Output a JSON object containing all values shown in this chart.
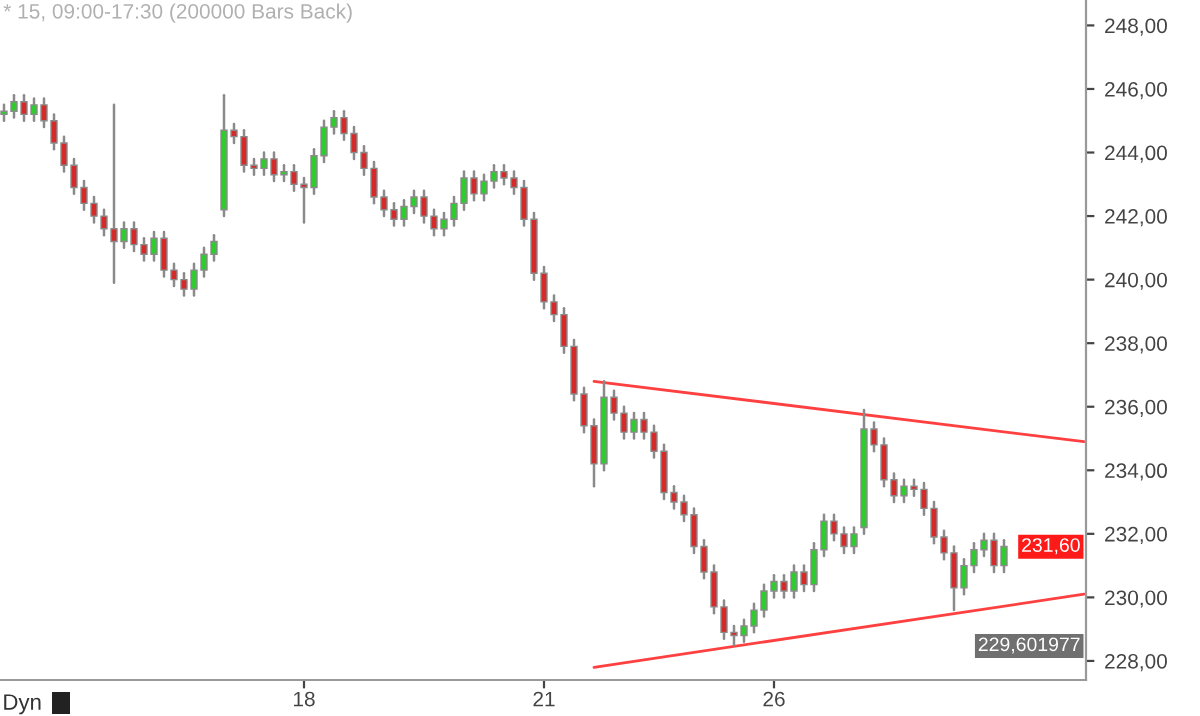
{
  "chart_data": {
    "type": "candlestick",
    "title": "* 15, 09:00-17:30 (200000 Bars Back)",
    "categories": [
      null,
      null,
      null,
      null,
      null,
      null,
      null,
      null,
      null,
      null,
      null,
      null,
      null,
      null,
      null,
      null,
      null,
      null,
      null,
      null,
      null,
      null,
      null,
      null,
      null,
      null,
      null,
      null,
      null,
      null,
      "18",
      null,
      null,
      null,
      null,
      null,
      null,
      null,
      null,
      null,
      null,
      null,
      null,
      null,
      null,
      null,
      null,
      null,
      null,
      null,
      null,
      null,
      null,
      null,
      "21",
      null,
      null,
      null,
      null,
      null,
      null,
      null,
      null,
      null,
      null,
      null,
      null,
      null,
      null,
      null,
      null,
      null,
      null,
      null,
      null,
      null,
      null,
      "26",
      null,
      null,
      null,
      null,
      null,
      null,
      null,
      null,
      null,
      null,
      null,
      null,
      null,
      null,
      null,
      null,
      null,
      null,
      null,
      null,
      null,
      null,
      null,
      null,
      null,
      null,
      null,
      null,
      null,
      null,
      null
    ],
    "ohlc": [
      [
        245.2,
        245.5,
        245.0,
        245.3
      ],
      [
        245.3,
        245.8,
        245.1,
        245.6
      ],
      [
        245.6,
        245.8,
        245.0,
        245.2
      ],
      [
        245.2,
        245.7,
        245.0,
        245.5
      ],
      [
        245.5,
        245.7,
        244.8,
        245.0
      ],
      [
        245.0,
        245.2,
        244.1,
        244.3
      ],
      [
        244.3,
        244.5,
        243.4,
        243.6
      ],
      [
        243.6,
        243.8,
        242.7,
        242.9
      ],
      [
        242.9,
        243.1,
        242.2,
        242.4
      ],
      [
        242.4,
        242.6,
        241.8,
        242.0
      ],
      [
        242.0,
        242.2,
        241.4,
        241.6
      ],
      [
        241.6,
        245.5,
        239.9,
        241.2
      ],
      [
        241.2,
        241.8,
        241.0,
        241.6
      ],
      [
        241.6,
        241.8,
        240.9,
        241.1
      ],
      [
        241.1,
        241.3,
        240.6,
        240.8
      ],
      [
        240.8,
        241.5,
        240.6,
        241.3
      ],
      [
        241.3,
        241.5,
        240.1,
        240.3
      ],
      [
        240.3,
        240.5,
        239.8,
        240.0
      ],
      [
        240.0,
        240.2,
        239.5,
        239.7
      ],
      [
        239.7,
        240.5,
        239.5,
        240.3
      ],
      [
        240.3,
        241.0,
        240.1,
        240.8
      ],
      [
        240.8,
        241.4,
        240.6,
        241.2
      ],
      [
        242.2,
        245.8,
        242.0,
        244.7
      ],
      [
        244.7,
        244.9,
        244.3,
        244.5
      ],
      [
        244.5,
        244.7,
        243.4,
        243.6
      ],
      [
        243.6,
        243.8,
        243.3,
        243.5
      ],
      [
        243.5,
        244.0,
        243.3,
        243.8
      ],
      [
        243.8,
        244.0,
        243.1,
        243.3
      ],
      [
        243.3,
        243.6,
        243.1,
        243.4
      ],
      [
        243.4,
        243.6,
        242.8,
        243.0
      ],
      [
        243.0,
        243.2,
        241.8,
        242.9
      ],
      [
        242.9,
        244.1,
        242.7,
        243.9
      ],
      [
        243.9,
        245.0,
        243.7,
        244.8
      ],
      [
        244.8,
        245.3,
        244.6,
        245.1
      ],
      [
        245.1,
        245.3,
        244.4,
        244.6
      ],
      [
        244.6,
        244.8,
        243.8,
        244.0
      ],
      [
        244.0,
        244.2,
        243.3,
        243.5
      ],
      [
        243.5,
        243.7,
        242.4,
        242.6
      ],
      [
        242.6,
        242.8,
        242.0,
        242.2
      ],
      [
        242.2,
        242.4,
        241.7,
        241.9
      ],
      [
        241.9,
        242.5,
        241.7,
        242.3
      ],
      [
        242.3,
        242.8,
        242.1,
        242.6
      ],
      [
        242.6,
        242.8,
        241.8,
        242.0
      ],
      [
        242.0,
        242.2,
        241.4,
        241.6
      ],
      [
        241.6,
        242.1,
        241.4,
        241.9
      ],
      [
        241.9,
        242.6,
        241.7,
        242.4
      ],
      [
        242.4,
        243.4,
        242.2,
        243.2
      ],
      [
        243.2,
        243.4,
        242.5,
        242.7
      ],
      [
        242.7,
        243.3,
        242.5,
        243.1
      ],
      [
        243.1,
        243.6,
        242.9,
        243.4
      ],
      [
        243.4,
        243.6,
        243.0,
        243.2
      ],
      [
        243.2,
        243.4,
        242.7,
        242.9
      ],
      [
        242.9,
        243.1,
        241.7,
        241.9
      ],
      [
        241.9,
        242.1,
        240.0,
        240.2
      ],
      [
        240.2,
        240.4,
        239.1,
        239.3
      ],
      [
        239.3,
        239.5,
        238.7,
        238.9
      ],
      [
        238.9,
        239.1,
        237.7,
        237.9
      ],
      [
        237.9,
        238.1,
        236.2,
        236.4
      ],
      [
        236.4,
        236.6,
        235.2,
        235.4
      ],
      [
        235.4,
        235.6,
        233.5,
        234.2
      ],
      [
        234.2,
        236.8,
        234.0,
        236.3
      ],
      [
        236.3,
        236.5,
        235.6,
        235.8
      ],
      [
        235.8,
        236.0,
        235.0,
        235.2
      ],
      [
        235.2,
        235.8,
        235.0,
        235.6
      ],
      [
        235.6,
        235.8,
        235.0,
        235.2
      ],
      [
        235.2,
        235.4,
        234.4,
        234.6
      ],
      [
        234.6,
        234.8,
        233.1,
        233.3
      ],
      [
        233.3,
        233.5,
        232.8,
        233.0
      ],
      [
        233.0,
        233.2,
        232.4,
        232.6
      ],
      [
        232.6,
        232.8,
        231.4,
        231.6
      ],
      [
        231.6,
        231.8,
        230.6,
        230.8
      ],
      [
        230.8,
        231.0,
        229.5,
        229.7
      ],
      [
        229.7,
        229.9,
        228.7,
        228.9
      ],
      [
        228.9,
        229.1,
        228.5,
        228.8
      ],
      [
        228.8,
        229.3,
        228.6,
        229.1
      ],
      [
        229.1,
        229.8,
        228.9,
        229.6
      ],
      [
        229.6,
        230.4,
        229.4,
        230.2
      ],
      [
        230.2,
        230.7,
        230.0,
        230.5
      ],
      [
        230.5,
        230.7,
        230.0,
        230.2
      ],
      [
        230.2,
        231.0,
        230.0,
        230.8
      ],
      [
        230.8,
        231.0,
        230.2,
        230.4
      ],
      [
        230.4,
        231.7,
        230.2,
        231.5
      ],
      [
        231.5,
        232.6,
        231.3,
        232.4
      ],
      [
        232.4,
        232.6,
        231.8,
        232.0
      ],
      [
        232.0,
        232.2,
        231.4,
        231.6
      ],
      [
        231.6,
        232.2,
        231.4,
        232.0
      ],
      [
        232.2,
        235.9,
        232.0,
        235.3
      ],
      [
        235.3,
        235.5,
        234.6,
        234.8
      ],
      [
        234.8,
        235.0,
        233.5,
        233.7
      ],
      [
        233.7,
        233.9,
        233.0,
        233.2
      ],
      [
        233.2,
        233.7,
        233.0,
        233.5
      ],
      [
        233.5,
        233.7,
        233.2,
        233.4
      ],
      [
        233.4,
        233.6,
        232.6,
        232.8
      ],
      [
        232.8,
        233.0,
        231.7,
        231.9
      ],
      [
        231.9,
        232.1,
        231.2,
        231.4
      ],
      [
        231.4,
        231.6,
        229.6,
        230.3
      ],
      [
        230.3,
        231.2,
        230.1,
        231.0
      ],
      [
        231.0,
        231.7,
        230.8,
        231.5
      ],
      [
        231.5,
        232.0,
        231.3,
        231.8
      ],
      [
        231.8,
        232.0,
        230.8,
        231.0
      ],
      [
        231.0,
        231.8,
        230.8,
        231.6
      ],
      null,
      null,
      null,
      null,
      null,
      null,
      null,
      null
    ],
    "series": [
      {
        "type": "line",
        "color": "#ff4040",
        "values": [
          null,
          null,
          null,
          null,
          null,
          null,
          null,
          null,
          null,
          null,
          null,
          null,
          null,
          null,
          null,
          null,
          null,
          null,
          null,
          null,
          null,
          null,
          null,
          null,
          null,
          null,
          null,
          null,
          null,
          null,
          null,
          null,
          null,
          null,
          null,
          null,
          null,
          null,
          null,
          null,
          null,
          null,
          null,
          null,
          null,
          null,
          null,
          null,
          null,
          null,
          null,
          null,
          null,
          null,
          null,
          null,
          null,
          null,
          null,
          236.8,
          null,
          null,
          null,
          null,
          null,
          null,
          null,
          null,
          null,
          null,
          null,
          null,
          null,
          null,
          null,
          null,
          null,
          null,
          null,
          null,
          null,
          null,
          null,
          null,
          null,
          null,
          null,
          null,
          null,
          null,
          null,
          null,
          null,
          null,
          null,
          null,
          null,
          null,
          null,
          null,
          null,
          null,
          null,
          null,
          null,
          null,
          null,
          null,
          234.9
        ]
      },
      {
        "type": "line",
        "color": "#ff4040",
        "values": [
          null,
          null,
          null,
          null,
          null,
          null,
          null,
          null,
          null,
          null,
          null,
          null,
          null,
          null,
          null,
          null,
          null,
          null,
          null,
          null,
          null,
          null,
          null,
          null,
          null,
          null,
          null,
          null,
          null,
          null,
          null,
          null,
          null,
          null,
          null,
          null,
          null,
          null,
          null,
          null,
          null,
          null,
          null,
          null,
          null,
          null,
          null,
          null,
          null,
          null,
          null,
          null,
          null,
          null,
          null,
          null,
          null,
          null,
          null,
          227.8,
          null,
          null,
          null,
          null,
          null,
          null,
          null,
          null,
          null,
          null,
          null,
          null,
          null,
          null,
          null,
          null,
          null,
          null,
          null,
          null,
          null,
          null,
          null,
          null,
          null,
          null,
          null,
          null,
          null,
          null,
          null,
          null,
          null,
          null,
          null,
          null,
          null,
          null,
          null,
          null,
          null,
          null,
          null,
          null,
          null,
          null,
          null,
          null,
          230.1
        ]
      }
    ],
    "ylim": [
      227.4,
      248.8
    ],
    "yticks": [
      {
        "value": 228,
        "label": "228,00"
      },
      {
        "value": 230,
        "label": "230,00"
      },
      {
        "value": 232,
        "label": "232,00"
      },
      {
        "value": 234,
        "label": "234,00"
      },
      {
        "value": 236,
        "label": "236,00"
      },
      {
        "value": 238,
        "label": "238,00"
      },
      {
        "value": 240,
        "label": "240,00"
      },
      {
        "value": 242,
        "label": "242,00"
      },
      {
        "value": 244,
        "label": "244,00"
      },
      {
        "value": 246,
        "label": "246,00"
      },
      {
        "value": 248,
        "label": "248,00"
      }
    ],
    "annotations": [
      "Dyn",
      "231,60",
      "229,601977"
    ],
    "grid": false,
    "legend": false
  }
}
